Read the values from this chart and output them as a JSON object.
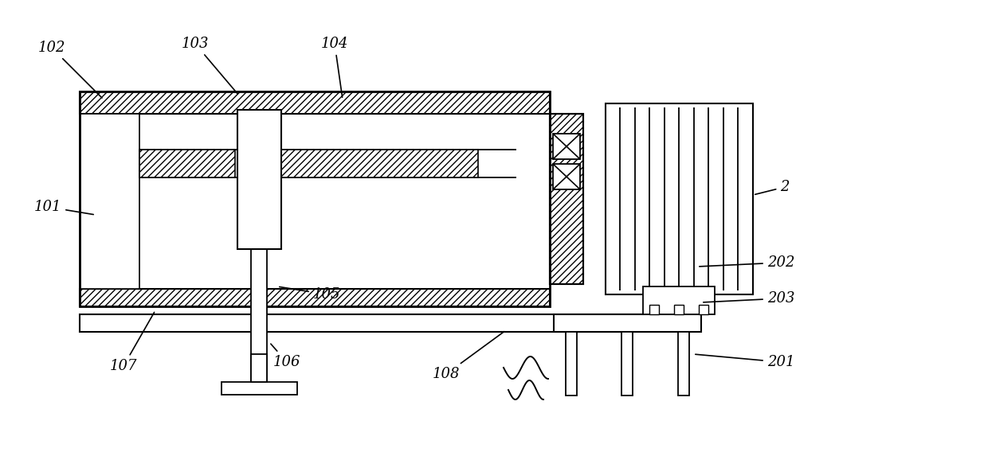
{
  "bg_color": "#ffffff",
  "fig_width": 12.4,
  "fig_height": 5.68,
  "dpi": 100
}
